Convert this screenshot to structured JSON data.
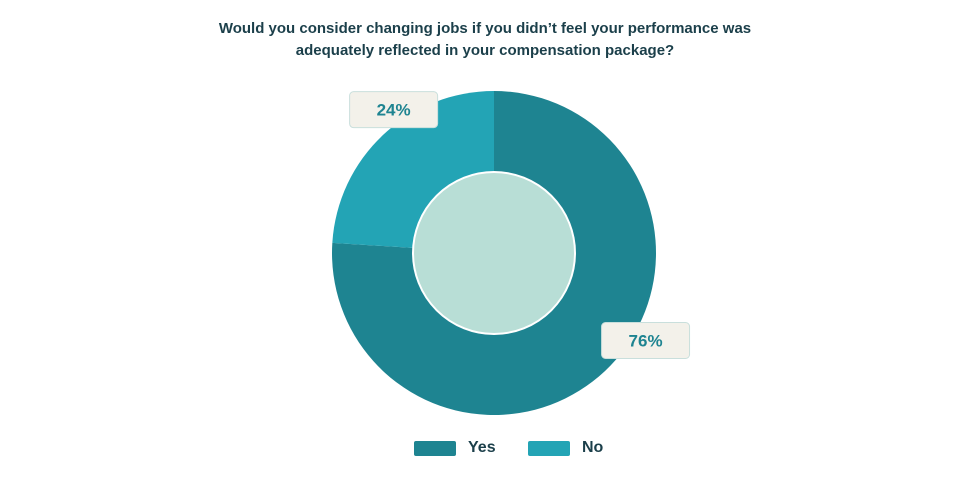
{
  "chart_data": {
    "type": "pie",
    "title_lines": [
      "Would you consider changing jobs if you didn’t feel your performance was",
      "adequately reflected in your compensation package?"
    ],
    "categories": [
      "Yes",
      "No"
    ],
    "values": [
      76,
      24
    ],
    "value_labels": [
      "76%",
      "24%"
    ],
    "colors": [
      "#1e8491",
      "#23a4b5"
    ],
    "center_color": "#b8ded6",
    "label_box_color": "#f3f1ea",
    "legend_position": "bottom"
  }
}
